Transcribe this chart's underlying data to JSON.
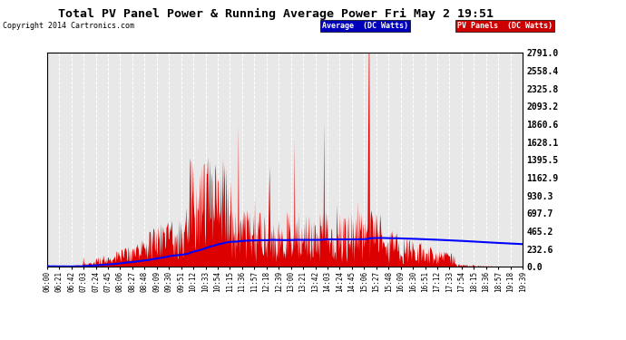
{
  "title": "Total PV Panel Power & Running Average Power Fri May 2 19:51",
  "copyright": "Copyright 2014 Cartronics.com",
  "ylabel_right": [
    "2791.0",
    "2558.4",
    "2325.8",
    "2093.2",
    "1860.6",
    "1628.1",
    "1395.5",
    "1162.9",
    "930.3",
    "697.7",
    "465.2",
    "232.6",
    "0.0"
  ],
  "ytick_values": [
    2791.0,
    2558.4,
    2325.8,
    2093.2,
    1860.6,
    1628.1,
    1395.5,
    1162.9,
    930.3,
    697.7,
    465.2,
    232.6,
    0.0
  ],
  "ymax": 2791.0,
  "ymin": 0.0,
  "background_color": "#ffffff",
  "plot_bg_color": "#e8e8e8",
  "grid_color": "#ffffff",
  "legend_avg_bg": "#0000bb",
  "legend_pv_bg": "#cc0000",
  "legend_avg_text": "Average  (DC Watts)",
  "legend_pv_text": "PV Panels  (DC Watts)",
  "pv_color": "#dd0000",
  "avg_color": "#0000ff",
  "x_labels": [
    "06:00",
    "06:21",
    "06:42",
    "07:03",
    "07:24",
    "07:45",
    "08:06",
    "08:27",
    "08:48",
    "09:09",
    "09:30",
    "09:51",
    "10:12",
    "10:33",
    "10:54",
    "11:15",
    "11:36",
    "11:57",
    "12:18",
    "12:39",
    "13:00",
    "13:21",
    "13:42",
    "14:03",
    "14:24",
    "14:45",
    "15:06",
    "15:27",
    "15:48",
    "16:09",
    "16:30",
    "16:51",
    "17:12",
    "17:33",
    "17:54",
    "18:15",
    "18:36",
    "18:57",
    "19:18",
    "19:39"
  ]
}
